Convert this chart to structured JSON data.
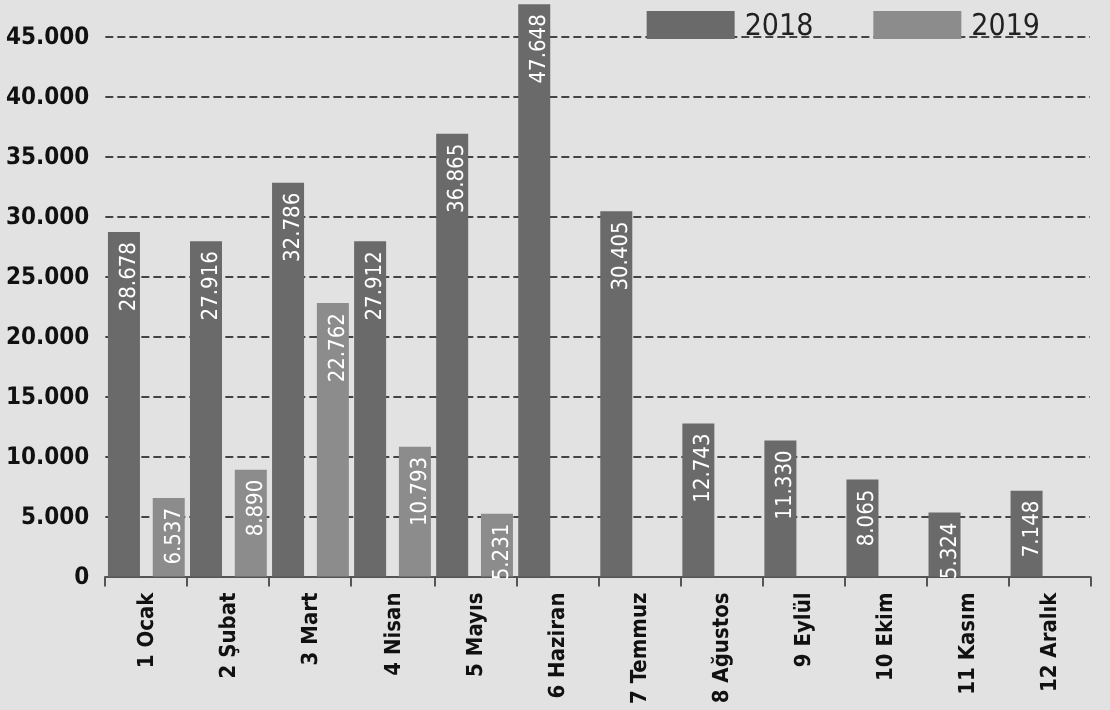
{
  "chart_data": {
    "type": "bar",
    "categories": [
      "1 Ocak",
      "2 Şubat",
      "3 Mart",
      "4 Nisan",
      "5 Mayıs",
      "6 Haziran",
      "7 Temmuz",
      "8 Ağustos",
      "9 Eylül",
      "10 Ekim",
      "11 Kasım",
      "12 Aralık"
    ],
    "series": [
      {
        "name": "2018",
        "color": "#6a6a6a",
        "values": [
          28678,
          27916,
          32786,
          27912,
          36865,
          47648,
          30405,
          12743,
          11330,
          8065,
          5324,
          7148
        ],
        "value_labels": [
          "28.678",
          "27.916",
          "32.786",
          "27.912",
          "36.865",
          "47.648",
          "30.405",
          "12.743",
          "11.330",
          "8.065",
          "5.324",
          "7.148"
        ]
      },
      {
        "name": "2019",
        "color": "#8c8c8c",
        "values": [
          6537,
          8890,
          22762,
          10793,
          5231,
          null,
          null,
          null,
          null,
          null,
          null,
          null
        ],
        "value_labels": [
          "6.537",
          "8.890",
          "22.762",
          "10.793",
          "5.231",
          null,
          null,
          null,
          null,
          null,
          null,
          null
        ]
      }
    ],
    "ylim": [
      0,
      48000
    ],
    "yticks": [
      0,
      {
        "value": 5000,
        "label": "5.000"
      },
      {
        "value": 10000,
        "label": "10.000"
      },
      {
        "value": 15000,
        "label": "15.000"
      },
      {
        "value": 20000,
        "label": "20.000"
      },
      {
        "value": 25000,
        "label": "25.000"
      },
      {
        "value": 30000,
        "label": "30.000"
      },
      {
        "value": 35000,
        "label": "35.000"
      },
      {
        "value": 40000,
        "label": "40.000"
      },
      {
        "value": 45000,
        "label": "45.000"
      }
    ],
    "grid": "y",
    "legend": "top right"
  }
}
